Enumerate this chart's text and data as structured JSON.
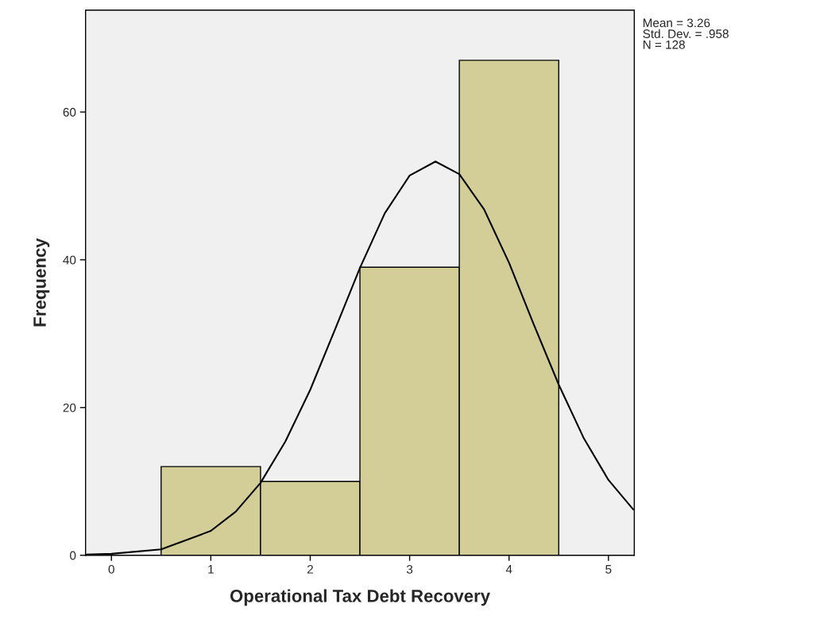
{
  "chart_data": {
    "type": "histogram",
    "xlabel": "Operational Tax Debt Recovery",
    "ylabel": "Frequency",
    "bins": [
      0.5,
      1.5,
      2.5,
      3.5,
      4.5
    ],
    "values": [
      12,
      10,
      39,
      67
    ],
    "color": "#d3ce98",
    "series": [
      {
        "type": "line",
        "color": "#000000",
        "x": [
          -0.25,
          0,
          0.5,
          1,
          1.25,
          1.5,
          1.75,
          2,
          2.25,
          2.5,
          2.75,
          3,
          3.26,
          3.5,
          3.75,
          4,
          4.25,
          4.5,
          4.75,
          5,
          5.25
        ],
        "values": [
          0.1,
          0.2,
          0.8,
          3.3,
          5.9,
          9.8,
          15.4,
          22.4,
          30.6,
          38.9,
          46.3,
          51.4,
          53.3,
          51.6,
          46.8,
          39.6,
          31.2,
          23.1,
          15.9,
          10.2,
          6.2
        ]
      }
    ],
    "xlim": [
      -0.26,
      5.26
    ],
    "ylim": [
      0,
      73.8
    ],
    "xticks": [
      0,
      1,
      2,
      3,
      4,
      5
    ],
    "yticks": [
      0,
      20,
      40,
      60
    ],
    "grid": false,
    "annotations": [
      "Mean = 3.26",
      "Std. Dev. = .958",
      "N = 128"
    ]
  }
}
